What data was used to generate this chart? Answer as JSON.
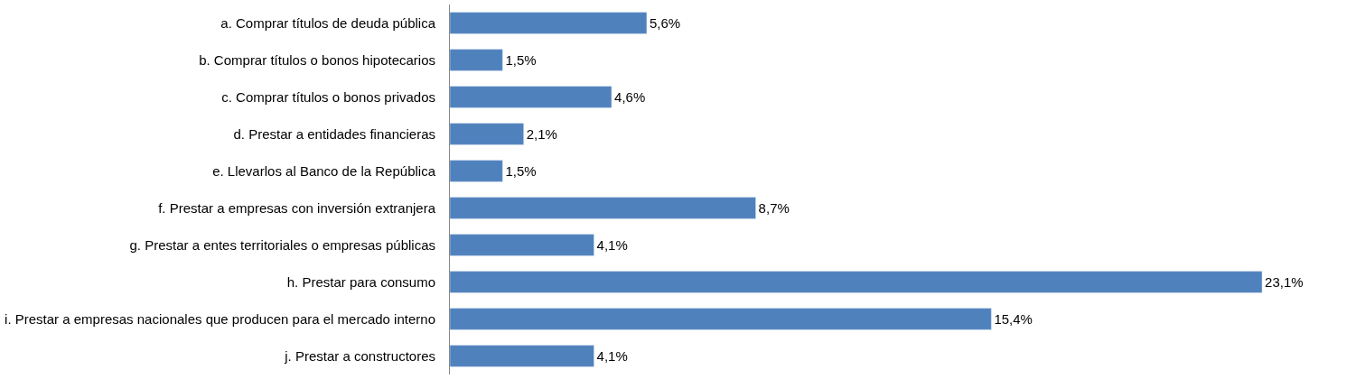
{
  "chart_data": {
    "type": "bar",
    "orientation": "horizontal",
    "categories": [
      "a. Comprar títulos de deuda pública",
      "b. Comprar títulos o bonos hipotecarios",
      "c. Comprar títulos o bonos privados",
      "d. Prestar a entidades financieras",
      "e. Llevarlos al Banco de la República",
      "f. Prestar a empresas con inversión extranjera",
      "g. Prestar a entes territoriales o empresas públicas",
      "h. Prestar para consumo",
      "i. Prestar a empresas nacionales que producen para el mercado interno",
      "j. Prestar a constructores"
    ],
    "values": [
      5.6,
      1.5,
      4.6,
      2.1,
      1.5,
      8.7,
      4.1,
      23.1,
      15.4,
      4.1
    ],
    "value_labels": [
      "5,6%",
      "1,5%",
      "4,6%",
      "2,1%",
      "1,5%",
      "8,7%",
      "4,1%",
      "23,1%",
      "15,4%",
      "4,1%"
    ],
    "color": "#4f81bd",
    "tick_labels": "y"
  }
}
